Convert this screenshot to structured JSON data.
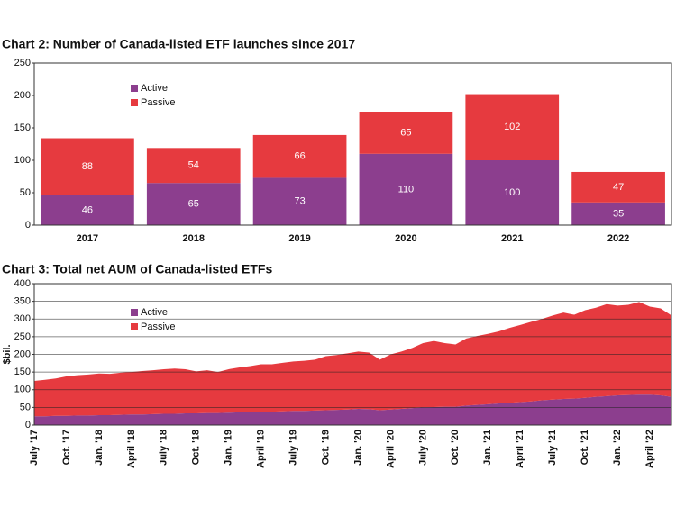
{
  "chart_data": [
    {
      "type": "bar",
      "stacked": true,
      "title": "Chart 2:  Number of Canada-listed ETF launches since 2017",
      "categories": [
        "2017",
        "2018",
        "2019",
        "2020",
        "2021",
        "2022"
      ],
      "series": [
        {
          "name": "Active",
          "color": "#8c3e8e",
          "values": [
            46,
            65,
            73,
            110,
            100,
            35
          ]
        },
        {
          "name": "Passive",
          "color": "#e63a3f",
          "values": [
            88,
            54,
            66,
            65,
            102,
            47
          ]
        }
      ],
      "ylim": [
        0,
        250
      ],
      "yticks": [
        0,
        50,
        100,
        150,
        200,
        250
      ],
      "grid": false,
      "legend": "upper left"
    },
    {
      "type": "area",
      "stacked": true,
      "title": "Chart 3: Total net AUM of Canada-listed ETFs",
      "y_label": "$bil.",
      "categories": [
        "July '17",
        null,
        null,
        "Oct. '17",
        null,
        null,
        "Jan. '18",
        null,
        null,
        "April '18",
        null,
        null,
        "July '18",
        null,
        null,
        "Oct. '18",
        null,
        null,
        "Jan. '19",
        null,
        null,
        "April '19",
        null,
        null,
        "July '19",
        null,
        null,
        "Oct. '19",
        null,
        null,
        "Jan. '20",
        null,
        null,
        "April '20",
        null,
        null,
        "July '20",
        null,
        null,
        "Oct. '20",
        null,
        null,
        "Jan. '21",
        null,
        null,
        "April '21",
        null,
        null,
        "July '21",
        null,
        null,
        "Oct. '21",
        null,
        null,
        "Jan. '22",
        null,
        null,
        "April '22",
        null,
        null
      ],
      "series": [
        {
          "name": "Active",
          "color": "#8c3e8e",
          "values": [
            25,
            25,
            26,
            26,
            27,
            27,
            28,
            28,
            29,
            30,
            30,
            31,
            32,
            32,
            33,
            33,
            34,
            34,
            35,
            36,
            37,
            38,
            38,
            39,
            40,
            40,
            41,
            42,
            43,
            44,
            46,
            45,
            42,
            44,
            46,
            48,
            50,
            51,
            52,
            52,
            55,
            57,
            59,
            61,
            63,
            65,
            67,
            70,
            72,
            74,
            75,
            77,
            80,
            82,
            84,
            85,
            86,
            86,
            84,
            80
          ]
        },
        {
          "name": "Passive",
          "color": "#e63a3f",
          "values": [
            100,
            103,
            106,
            112,
            114,
            116,
            118,
            117,
            119,
            120,
            123,
            124,
            126,
            128,
            125,
            119,
            121,
            116,
            123,
            127,
            130,
            134,
            134,
            137,
            140,
            142,
            144,
            153,
            155,
            159,
            162,
            160,
            143,
            156,
            162,
            170,
            182,
            187,
            180,
            176,
            190,
            195,
            199,
            204,
            212,
            218,
            225,
            230,
            238,
            244,
            237,
            248,
            252,
            260,
            254,
            255,
            262,
            249,
            246,
            230
          ]
        }
      ],
      "ylim": [
        0,
        400
      ],
      "yticks": [
        0,
        50,
        100,
        150,
        200,
        250,
        300,
        350,
        400
      ],
      "grid": true,
      "legend": "upper left"
    }
  ]
}
